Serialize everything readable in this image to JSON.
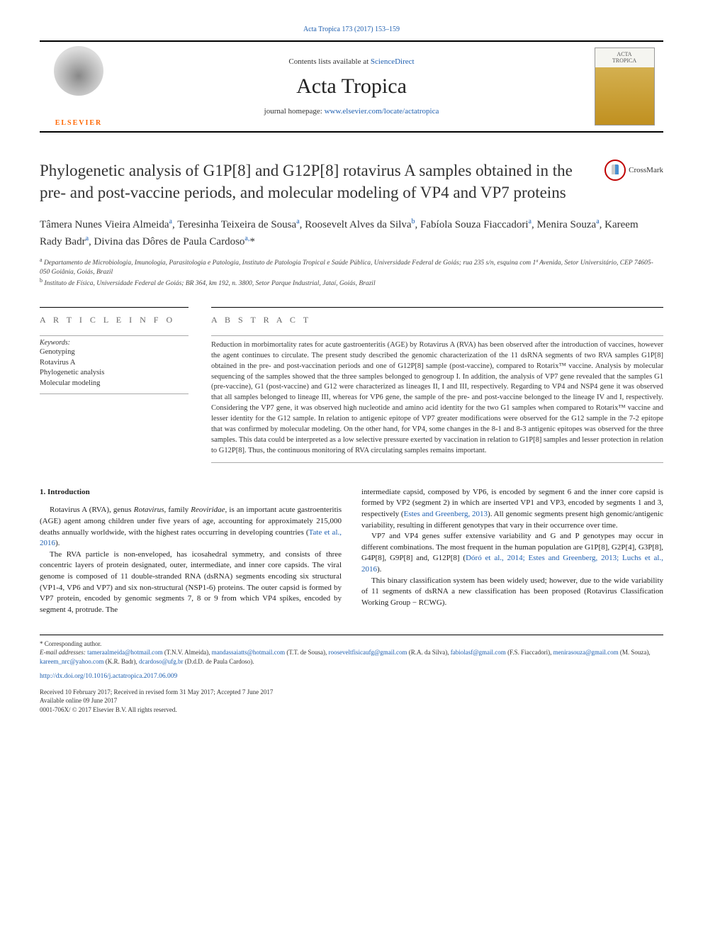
{
  "top_citation": "Acta Tropica 173 (2017) 153–159",
  "header": {
    "contents_prefix": "Contents lists available at ",
    "contents_link": "ScienceDirect",
    "journal_name": "Acta Tropica",
    "homepage_prefix": "journal homepage: ",
    "homepage_url": "www.elsevier.com/locate/actatropica",
    "publisher_name": "ELSEVIER",
    "cover_title_line1": "ACTA",
    "cover_title_line2": "TROPICA"
  },
  "crossmark_label": "CrossMark",
  "article": {
    "title": "Phylogenetic analysis of G1P[8] and G12P[8] rotavirus A samples obtained in the pre- and post-vaccine periods, and molecular modeling of VP4 and VP7 proteins",
    "authors_html": "Tâmera Nunes Vieira Almeida<sup>a</sup>, Teresinha Teixeira de Sousa<sup>a</sup>, Roosevelt Alves da Silva<sup>b</sup>, Fabíola Souza Fiaccadori<sup>a</sup>, Menira Souza<sup>a</sup>, Kareem Rady Badr<sup>a</sup>, Divina das Dôres de Paula Cardoso<sup>a,</sup>*",
    "affiliations": [
      "a Departamento de Microbiologia, Imunologia, Parasitologia e Patologia, Instituto de Patologia Tropical e Saúde Pública, Universidade Federal de Goiás; rua 235 s/n, esquina com 1ª Avenida, Setor Universitário, CEP 74605-050 Goiânia, Goiás, Brazil",
      "b Instituto de Física, Universidade Federal de Goiás; BR 364, km 192, n. 3800, Setor Parque Industrial, Jataí, Goiás, Brazil"
    ]
  },
  "article_info_heading": "A R T I C L E  I N F O",
  "abstract_heading": "A B S T R A C T",
  "keywords_label": "Keywords:",
  "keywords": [
    "Genotyping",
    "Rotavirus A",
    "Phylogenetic analysis",
    "Molecular modeling"
  ],
  "abstract": "Reduction in morbimortality rates for acute gastroenteritis (AGE) by Rotavirus A (RVA) has been observed after the introduction of vaccines, however the agent continues to circulate. The present study described the genomic characterization of the 11 dsRNA segments of two RVA samples G1P[8] obtained in the pre- and post-vaccination periods and one of G12P[8] sample (post-vaccine), compared to Rotarix™ vaccine. Analysis by molecular sequencing of the samples showed that the three samples belonged to genogroup I. In addition, the analysis of VP7 gene revealed that the samples G1 (pre-vaccine), G1 (post-vaccine) and G12 were characterized as lineages II, I and III, respectively. Regarding to VP4 and NSP4 gene it was observed that all samples belonged to lineage III, whereas for VP6 gene, the sample of the pre- and post-vaccine belonged to the lineage IV and I, respectively. Considering the VP7 gene, it was observed high nucleotide and amino acid identity for the two G1 samples when compared to Rotarix™ vaccine and lesser identity for the G12 sample. In relation to antigenic epitope of VP7 greater modifications were observed for the G12 sample in the 7-2 epitope that was confirmed by molecular modeling. On the other hand, for VP4, some changes in the 8-1 and 8-3 antigenic epitopes was observed for the three samples. This data could be interpreted as a low selective pressure exerted by vaccination in relation to G1P[8] samples and lesser protection in relation to G12P[8]. Thus, the continuous monitoring of RVA circulating samples remains important.",
  "body": {
    "section_number": "1.",
    "section_title": "Introduction",
    "left_paras": [
      "Rotavirus A (RVA), genus <i>Rotavirus</i>, family <i>Reoviridae</i>, is an important acute gastroenteritis (AGE) agent among children under five years of age, accounting for approximately 215,000 deaths annually worldwide, with the highest rates occurring in developing countries (<a>Tate et al., 2016</a>).",
      "The RVA particle is non-enveloped, has icosahedral symmetry, and consists of three concentric layers of protein designated, outer, intermediate, and inner core capsids. The viral genome is composed of 11 double-stranded RNA (dsRNA) segments encoding six structural (VP1-4, VP6 and VP7) and six non-structural (NSP1-6) proteins. The outer capsid is formed by VP7 protein, encoded by genomic segments 7, 8 or 9 from which VP4 spikes, encoded by segment 4, protrude. The"
    ],
    "right_paras": [
      "intermediate capsid, composed by VP6, is encoded by segment 6 and the inner core capsid is formed by VP2 (segment 2) in which are inserted VP1 and VP3, encoded by segments 1 and 3, respectively (<a>Estes and Greenberg, 2013</a>). All genomic segments present high genomic/antigenic variability, resulting in different genotypes that vary in their occurrence over time.",
      "VP7 and VP4 genes suffer extensive variability and G and P genotypes may occur in different combinations. The most frequent in the human population are G1P[8], G2P[4], G3P[8], G4P[8], G9P[8] and, G12P[8] (<a>Dóró et al., 2014; Estes and Greenberg, 2013; Luchs et al., 2016</a>).",
      "This binary classification system has been widely used; however, due to the wide variability of 11 segments of dsRNA a new classification has been proposed (Rotavirus Classification Working Group − RCWG)."
    ]
  },
  "footer": {
    "corresponding": "* Corresponding author.",
    "email_label": "E-mail addresses:",
    "emails": [
      {
        "addr": "tameraalmeida@hotmail.com",
        "who": "(T.N.V. Almeida)"
      },
      {
        "addr": "mandassaiatts@hotmail.com",
        "who": "(T.T. de Sousa)"
      },
      {
        "addr": "rooseveltfisicaufg@gmail.com",
        "who": "(R.A. da Silva)"
      },
      {
        "addr": "fabiolasf@gmail.com",
        "who": "(F.S. Fiaccadori)"
      },
      {
        "addr": "menirasouza@gmail.com",
        "who": "(M. Souza)"
      },
      {
        "addr": "kareem_nrc@yahoo.com",
        "who": "(K.R. Badr)"
      },
      {
        "addr": "dcardoso@ufg.br",
        "who": "(D.d.D. de Paula Cardoso)."
      }
    ],
    "doi": "http://dx.doi.org/10.1016/j.actatropica.2017.06.009",
    "dates": "Received 10 February 2017; Received in revised form 31 May 2017; Accepted 7 June 2017",
    "online": "Available online 09 June 2017",
    "copyright": "0001-706X/ © 2017 Elsevier B.V. All rights reserved."
  },
  "colors": {
    "link": "#2060b0",
    "elsevier_orange": "#ff6600",
    "text": "#333333",
    "rule": "#000000"
  }
}
